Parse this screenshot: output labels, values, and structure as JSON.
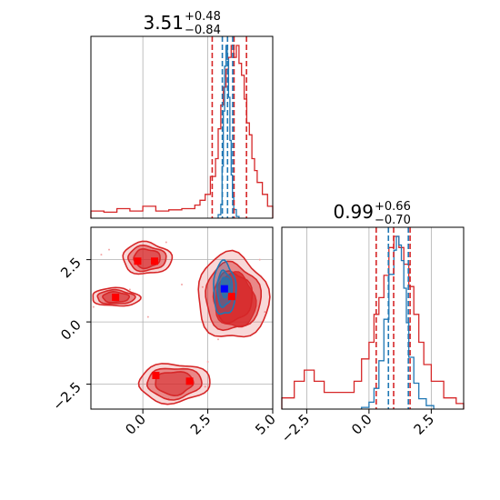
{
  "chart_data": [
    {
      "panel": "top-left",
      "type": "histogram",
      "title": {
        "value": "3.51",
        "plus": "+0.48",
        "minus": "−0.84"
      },
      "xlim": [
        -2.0,
        5.0
      ],
      "grid": true,
      "series": [
        {
          "color": "#d62728",
          "bin_edges": [
            -2.0,
            -1.5,
            -1.0,
            -0.5,
            0.0,
            0.5,
            1.0,
            1.5,
            2.0,
            2.2,
            2.4,
            2.6,
            2.8,
            2.9,
            3.0,
            3.1,
            3.2,
            3.3,
            3.4,
            3.5,
            3.6,
            3.7,
            3.8,
            3.9,
            4.0,
            4.1,
            4.2,
            4.3,
            4.4,
            4.6,
            4.8,
            5.0
          ],
          "counts": [
            0.012,
            0.01,
            0.016,
            0.012,
            0.02,
            0.012,
            0.014,
            0.016,
            0.022,
            0.03,
            0.04,
            0.07,
            0.1,
            0.15,
            0.19,
            0.22,
            0.25,
            0.27,
            0.29,
            0.27,
            0.29,
            0.26,
            0.24,
            0.2,
            0.16,
            0.14,
            0.1,
            0.08,
            0.06,
            0.04,
            0.02
          ]
        },
        {
          "color": "#1f77b4",
          "bin_edges": [
            2.9,
            3.0,
            3.05,
            3.1,
            3.15,
            3.2,
            3.25,
            3.3,
            3.35,
            3.4,
            3.45,
            3.5,
            3.6,
            3.7
          ],
          "counts": [
            0.02,
            0.08,
            0.3,
            0.62,
            0.88,
            1.0,
            0.92,
            0.7,
            0.45,
            0.25,
            0.12,
            0.05,
            0.01
          ]
        }
      ],
      "quantiles": {
        "red": [
          2.67,
          3.51,
          3.99
        ],
        "blue": [
          3.06,
          3.26,
          3.46
        ]
      }
    },
    {
      "panel": "bottom-left",
      "type": "contour",
      "xlim": [
        -2.0,
        5.0
      ],
      "ylim": [
        -3.5,
        3.8
      ],
      "xticks": [
        0.0,
        2.5,
        5.0
      ],
      "xtick_labels": [
        "0.0",
        "2.5",
        "5.0"
      ],
      "yticks": [
        -2.5,
        0.0,
        2.5
      ],
      "ytick_labels": [
        "−2.5",
        "0.0",
        "2.5"
      ],
      "grid": true,
      "red_modes": [
        {
          "x": -1.05,
          "y": 0.99
        },
        {
          "x": -0.2,
          "y": 2.44
        },
        {
          "x": 0.45,
          "y": 2.44
        },
        {
          "x": 0.5,
          "y": -2.15
        },
        {
          "x": 1.8,
          "y": -2.38
        },
        {
          "x": 3.42,
          "y": 1.02
        }
      ],
      "blue_mode": {
        "x": 3.14,
        "y": 1.33
      }
    },
    {
      "panel": "bottom-right",
      "type": "histogram",
      "title": {
        "value": "0.99",
        "plus": "+0.66",
        "minus": "−0.70"
      },
      "xlim": [
        -3.5,
        3.8
      ],
      "xticks": [
        -2.5,
        0.0,
        2.5
      ],
      "xtick_labels": [
        "−2.5",
        "0.0",
        "2.5"
      ],
      "grid": true,
      "series": [
        {
          "color": "#d62728",
          "bin_edges": [
            -3.5,
            -3.0,
            -2.6,
            -2.2,
            -1.8,
            -1.4,
            -1.0,
            -0.6,
            -0.3,
            0.0,
            0.2,
            0.4,
            0.6,
            0.8,
            1.0,
            1.2,
            1.4,
            1.6,
            1.8,
            2.0,
            2.2,
            2.5,
            3.0,
            3.5,
            3.8
          ],
          "counts": [
            0.02,
            0.05,
            0.07,
            0.05,
            0.03,
            0.03,
            0.03,
            0.05,
            0.09,
            0.12,
            0.17,
            0.2,
            0.24,
            0.29,
            0.31,
            0.29,
            0.26,
            0.22,
            0.17,
            0.12,
            0.08,
            0.05,
            0.02,
            0.01
          ]
        },
        {
          "color": "#1f77b4",
          "bin_edges": [
            -0.3,
            0.0,
            0.2,
            0.4,
            0.6,
            0.8,
            1.0,
            1.1,
            1.2,
            1.3,
            1.4,
            1.5,
            1.6,
            1.8,
            2.0,
            2.3,
            2.6
          ],
          "counts": [
            0.01,
            0.04,
            0.12,
            0.28,
            0.52,
            0.78,
            0.92,
            1.0,
            0.95,
            0.86,
            0.7,
            0.5,
            0.3,
            0.15,
            0.06,
            0.02
          ]
        }
      ],
      "quantiles": {
        "red": [
          0.29,
          0.99,
          1.65
        ],
        "blue": [
          0.78,
          1.58
        ]
      }
    }
  ],
  "colors": {
    "red": "#d62728",
    "blue": "#1f77b4",
    "grid": "#b0b0b0"
  }
}
